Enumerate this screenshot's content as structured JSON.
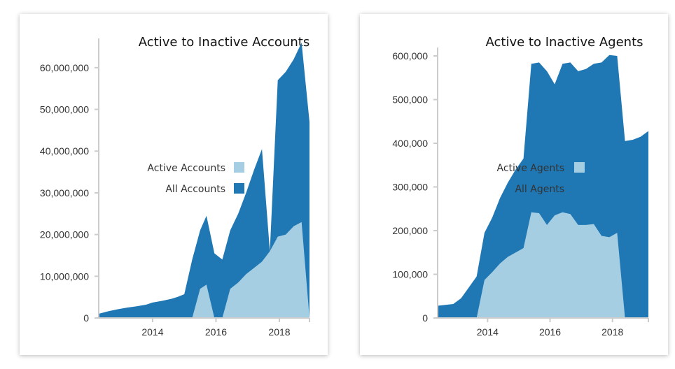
{
  "colors": {
    "all": "#1f77b4",
    "active": "#a6cee3",
    "axis": "#cccccc"
  },
  "chart_data": [
    {
      "type": "area",
      "title": "Active to Inactive Accounts",
      "xlabel": "",
      "ylabel": "",
      "xlim": [
        2012.3,
        2018.95
      ],
      "ylim": [
        0,
        65000000
      ],
      "x_ticks": [
        2014,
        2016,
        2018
      ],
      "x_tick_labels": [
        "2014",
        "2016",
        "2018"
      ],
      "y_ticks": [
        0,
        10000000,
        20000000,
        30000000,
        40000000,
        50000000,
        60000000
      ],
      "y_tick_labels": [
        "0",
        "10,000,000",
        "20,000,000",
        "30,000,000",
        "40,000,000",
        "50,000,000",
        "60,000,000"
      ],
      "legend": {
        "position": "center-right",
        "items": [
          {
            "label": "Active Accounts",
            "series": "active"
          },
          {
            "label": "All Accounts",
            "series": "all"
          }
        ]
      },
      "series": [
        {
          "name": "All Accounts",
          "key": "all",
          "x": [
            2012.3,
            2012.6,
            2012.9,
            2013.2,
            2013.5,
            2013.8,
            2014.0,
            2014.3,
            2014.6,
            2014.8,
            2015.0,
            2015.25,
            2015.5,
            2015.7,
            2015.95,
            2016.2,
            2016.45,
            2016.7,
            2016.95,
            2017.2,
            2017.45,
            2017.7,
            2017.95,
            2018.2,
            2018.45,
            2018.7,
            2018.95
          ],
          "y": [
            1000000,
            1600000,
            2100000,
            2500000,
            2800000,
            3200000,
            3700000,
            4100000,
            4600000,
            5100000,
            5700000,
            14000000,
            21000000,
            24500000,
            15500000,
            14000000,
            21000000,
            25000000,
            30000000,
            35500000,
            40500000,
            16000000,
            57000000,
            59000000,
            62000000,
            66000000,
            47000000
          ]
        },
        {
          "name": "Active Accounts",
          "key": "active",
          "x": [
            2012.3,
            2015.0,
            2015.25,
            2015.5,
            2015.7,
            2015.95,
            2016.2,
            2016.45,
            2016.7,
            2016.95,
            2017.2,
            2017.45,
            2017.7,
            2017.95,
            2018.2,
            2018.45,
            2018.7,
            2018.95
          ],
          "y": [
            0,
            0,
            0,
            7000000,
            8000000,
            0,
            0,
            7000000,
            8500000,
            10500000,
            12000000,
            13500000,
            16000000,
            19500000,
            20000000,
            22000000,
            23000000,
            0
          ]
        }
      ]
    },
    {
      "type": "area",
      "title": "Active to Inactive Agents",
      "xlabel": "",
      "ylabel": "",
      "xlim": [
        2012.4,
        2019.15
      ],
      "ylim": [
        0,
        600000
      ],
      "x_ticks": [
        2014,
        2016,
        2018
      ],
      "x_tick_labels": [
        "2014",
        "2016",
        "2018"
      ],
      "y_ticks": [
        0,
        100000,
        200000,
        300000,
        400000,
        500000,
        600000
      ],
      "y_tick_labels": [
        "0",
        "100,000",
        "200,000",
        "300,000",
        "400,000",
        "500,000",
        "600,000"
      ],
      "legend": {
        "position": "center",
        "items": [
          {
            "label": "Active Agents",
            "series": "active"
          },
          {
            "label": "All Agents",
            "series": "all"
          }
        ]
      },
      "series": [
        {
          "name": "All Agents",
          "key": "all",
          "x": [
            2012.4,
            2012.65,
            2012.9,
            2013.15,
            2013.4,
            2013.65,
            2013.9,
            2014.15,
            2014.4,
            2014.65,
            2014.9,
            2015.15,
            2015.4,
            2015.65,
            2015.9,
            2016.15,
            2016.4,
            2016.65,
            2016.9,
            2017.15,
            2017.4,
            2017.65,
            2017.9,
            2018.15,
            2018.4,
            2018.65,
            2018.9,
            2019.15
          ],
          "y": [
            28000,
            30000,
            32000,
            45000,
            70000,
            95000,
            195000,
            230000,
            275000,
            310000,
            340000,
            365000,
            582000,
            585000,
            565000,
            535000,
            582000,
            585000,
            565000,
            570000,
            582000,
            585000,
            602000,
            600000,
            405000,
            408000,
            415000,
            428000
          ]
        },
        {
          "name": "Active Agents",
          "key": "active",
          "x": [
            2012.4,
            2013.4,
            2013.65,
            2013.9,
            2014.15,
            2014.4,
            2014.65,
            2014.9,
            2015.15,
            2015.4,
            2015.65,
            2015.9,
            2016.15,
            2016.4,
            2016.65,
            2016.9,
            2017.15,
            2017.4,
            2017.65,
            2017.9,
            2018.15,
            2018.4,
            2019.15
          ],
          "y": [
            0,
            0,
            0,
            87000,
            105000,
            125000,
            140000,
            150000,
            160000,
            242000,
            240000,
            213000,
            235000,
            242000,
            238000,
            213000,
            213000,
            215000,
            188000,
            185000,
            195000,
            0,
            0
          ]
        }
      ]
    }
  ]
}
